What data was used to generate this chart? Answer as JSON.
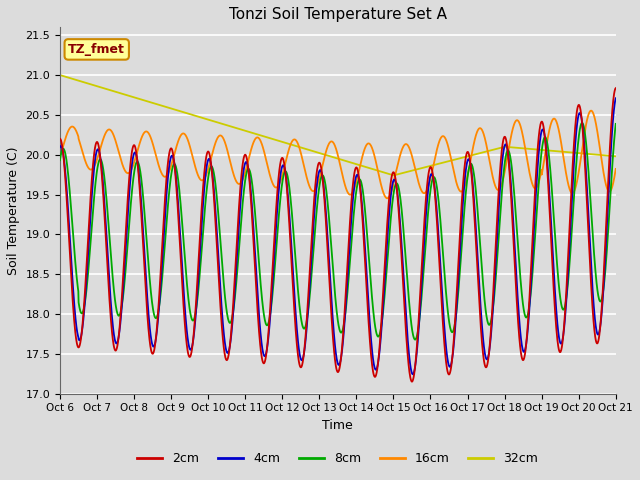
{
  "title": "Tonzi Soil Temperature Set A",
  "xlabel": "Time",
  "ylabel": "Soil Temperature (C)",
  "ylim": [
    17.0,
    21.6
  ],
  "xlim": [
    0,
    15
  ],
  "fig_width": 6.4,
  "fig_height": 4.8,
  "fig_dpi": 100,
  "background_color": "#dcdcdc",
  "plot_bg_color": "#dcdcdc",
  "grid_color": "#ffffff",
  "annotation_text": "TZ_fmet",
  "annotation_bg": "#ffff99",
  "annotation_border": "#cc8800",
  "annotation_color": "#880000",
  "colors": {
    "2cm": "#cc0000",
    "4cm": "#0000cc",
    "8cm": "#00aa00",
    "16cm": "#ff8800",
    "32cm": "#cccc00"
  },
  "legend_labels": [
    "2cm",
    "4cm",
    "8cm",
    "16cm",
    "32cm"
  ],
  "tick_labels": [
    "Oct 6",
    "Oct 7",
    "Oct 8",
    "Oct 9",
    "Oct 10",
    "Oct 11",
    "Oct 12",
    "Oct 13",
    "Oct 14",
    "Oct 15",
    "Oct 16",
    "Oct 17",
    "Oct 18",
    "Oct 19",
    "Oct 20",
    "Oct 21"
  ],
  "yticks": [
    17.0,
    17.5,
    18.0,
    18.5,
    19.0,
    19.5,
    20.0,
    20.5,
    21.0,
    21.5
  ],
  "n_points": 2000
}
